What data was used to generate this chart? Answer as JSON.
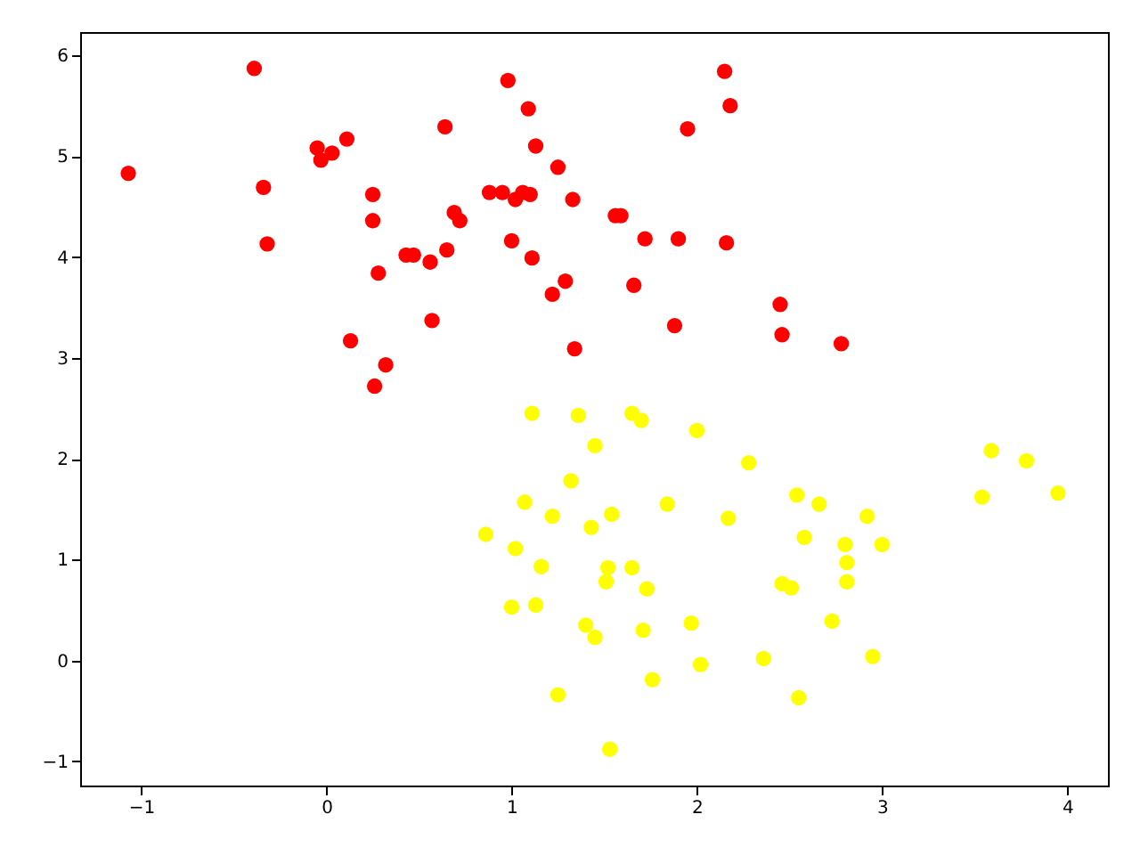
{
  "chart_data": {
    "type": "scatter",
    "xlim": [
      -1.33,
      4.22
    ],
    "ylim": [
      -1.24,
      6.23
    ],
    "xticks": [
      -1,
      0,
      1,
      2,
      3,
      4
    ],
    "yticks": [
      -1,
      0,
      1,
      2,
      3,
      4,
      5,
      6
    ],
    "grid": false,
    "marker": "circle",
    "series": [
      {
        "color": "#ff0000",
        "x": [
          -1.07,
          -0.39,
          -0.34,
          -0.32,
          -0.05,
          -0.03,
          0.03,
          0.11,
          0.13,
          0.26,
          0.25,
          0.25,
          0.28,
          0.32,
          0.43,
          0.47,
          0.56,
          0.57,
          0.64,
          0.65,
          0.69,
          0.72,
          0.88,
          0.95,
          1.0,
          1.02,
          1.06,
          1.1,
          0.98,
          1.09,
          1.13,
          1.11,
          1.25,
          1.22,
          1.29,
          1.33,
          1.34,
          1.56,
          1.59,
          1.66,
          1.72,
          1.9,
          1.95,
          1.88,
          2.15,
          2.18,
          2.16,
          2.45,
          2.46,
          2.78
        ],
        "values": [
          4.83,
          5.87,
          4.69,
          4.13,
          5.08,
          4.96,
          5.03,
          5.17,
          3.17,
          2.72,
          4.62,
          4.36,
          3.84,
          2.93,
          4.02,
          4.02,
          3.95,
          3.37,
          5.29,
          4.07,
          4.44,
          4.36,
          4.64,
          4.64,
          4.16,
          4.57,
          4.64,
          4.62,
          5.75,
          5.47,
          5.1,
          3.99,
          4.89,
          3.63,
          3.76,
          4.57,
          3.09,
          4.41,
          4.41,
          3.72,
          4.18,
          4.18,
          5.27,
          3.32,
          5.84,
          5.5,
          4.14,
          3.53,
          3.23,
          3.14
        ]
      },
      {
        "color": "#ffff00",
        "x": [
          1.11,
          1.36,
          1.65,
          1.7,
          1.45,
          2.0,
          2.28,
          1.32,
          1.07,
          1.22,
          0.86,
          1.02,
          1.43,
          1.54,
          1.84,
          2.17,
          1.16,
          1.52,
          1.51,
          1.65,
          1.73,
          1.0,
          1.13,
          1.4,
          1.45,
          1.71,
          1.97,
          2.02,
          1.76,
          1.25,
          1.53,
          2.46,
          2.51,
          2.54,
          2.66,
          2.58,
          2.92,
          2.8,
          3.0,
          2.81,
          2.81,
          2.73,
          2.36,
          2.95,
          2.55,
          3.59,
          3.78,
          3.54,
          3.95
        ],
        "values": [
          2.45,
          2.43,
          2.45,
          2.38,
          2.13,
          2.28,
          1.96,
          1.78,
          1.57,
          1.43,
          1.25,
          1.11,
          1.32,
          1.45,
          1.55,
          1.41,
          0.93,
          0.92,
          0.78,
          0.92,
          0.71,
          0.53,
          0.55,
          0.35,
          0.23,
          0.3,
          0.37,
          -0.04,
          -0.19,
          -0.34,
          -0.88,
          0.76,
          0.72,
          1.64,
          1.55,
          1.22,
          1.43,
          1.15,
          1.15,
          0.97,
          0.78,
          0.39,
          0.02,
          0.04,
          -0.37,
          2.08,
          1.98,
          1.62,
          1.66
        ]
      }
    ]
  }
}
